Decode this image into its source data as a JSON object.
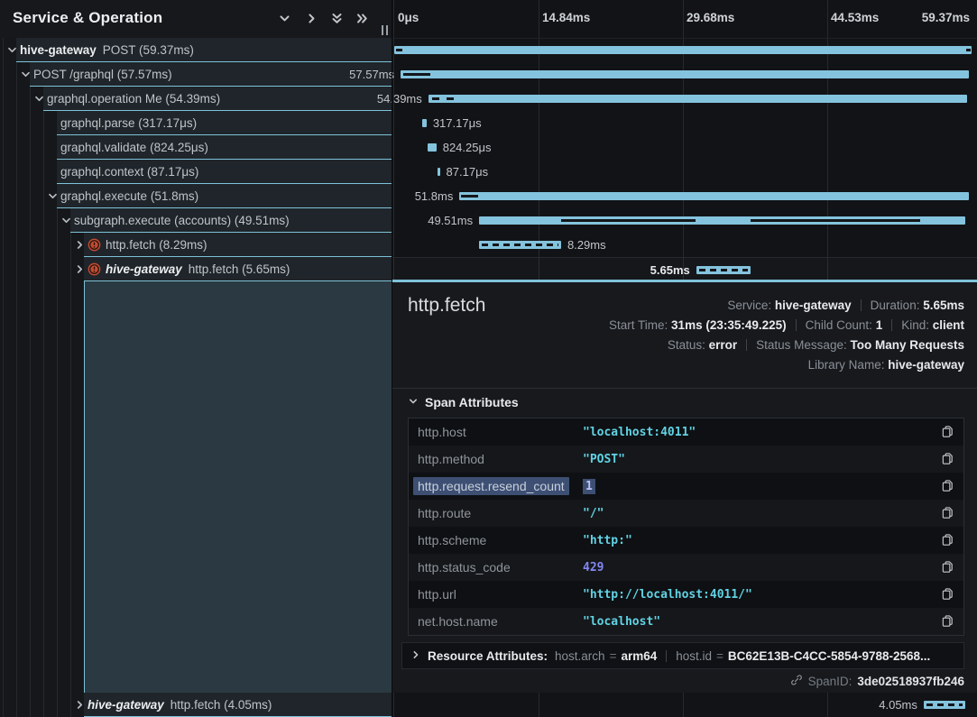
{
  "colors": {
    "accent_bar": "#84c3dd",
    "error_icon": "#c64b31",
    "selection": "#3d4f73",
    "status_code": "#8287f2",
    "value_string": "#61d3e4"
  },
  "left_panel": {
    "header": {
      "title": "Service & Operation",
      "icons": [
        "chevron-down",
        "chevron-right",
        "double-chevron-down",
        "double-chevron-right"
      ]
    },
    "rows": [
      {
        "level": 0,
        "chevron": "down",
        "service": "hive-gateway",
        "italic": false,
        "error": false,
        "name": "POST (59.37ms)"
      },
      {
        "level": 1,
        "chevron": "down",
        "name": "POST /graphql (57.57ms)"
      },
      {
        "level": 2,
        "chevron": "down",
        "name": "graphql.operation Me (54.39ms)"
      },
      {
        "level": 3,
        "chevron": "",
        "name": "graphql.parse (317.17μs)"
      },
      {
        "level": 3,
        "chevron": "",
        "name": "graphql.validate (824.25μs)"
      },
      {
        "level": 3,
        "chevron": "",
        "name": "graphql.context (87.17μs)"
      },
      {
        "level": 3,
        "chevron": "down",
        "name": "graphql.execute (51.8ms)"
      },
      {
        "level": 4,
        "chevron": "down",
        "name": "subgraph.execute (accounts) (49.51ms)"
      },
      {
        "level": 5,
        "chevron": "right",
        "error": true,
        "name": "http.fetch (8.29ms)"
      },
      {
        "level": 5,
        "chevron": "right",
        "error": true,
        "service": "hive-gateway",
        "italic": true,
        "name": "http.fetch (5.65ms)",
        "selected": true
      }
    ],
    "bottom_row": {
      "level": 5,
      "chevron": "right",
      "service": "hive-gateway",
      "italic": true,
      "name": "http.fetch (4.05ms)"
    }
  },
  "timeline": {
    "ticks": [
      "0μs",
      "14.84ms",
      "29.68ms",
      "44.53ms",
      "59.37ms"
    ],
    "bars": [
      {
        "start": 0,
        "width": 100,
        "segments": [
          [
            0.3,
            1.4
          ],
          [
            99.0,
            99.8
          ]
        ],
        "label": "",
        "side": ""
      },
      {
        "start": 1.1,
        "width": 98.4,
        "segments": [
          [
            0.5,
            5.3
          ]
        ],
        "label": "57.57ms",
        "side": "left"
      },
      {
        "start": 5.9,
        "width": 93.3,
        "segments": [
          [
            0.7,
            2.1
          ],
          [
            3.4,
            4.8
          ]
        ],
        "label": "54.39ms",
        "side": "left"
      },
      {
        "start": 4.9,
        "width": 0.7,
        "segments": [],
        "label": "317.17μs",
        "side": "right"
      },
      {
        "start": 5.8,
        "width": 1.5,
        "segments": [],
        "label": "824.25μs",
        "side": "right"
      },
      {
        "start": 7.5,
        "width": 0.4,
        "segments": [],
        "label": "87.17μs",
        "side": "right"
      },
      {
        "start": 11.3,
        "width": 88.2,
        "segments": [
          [
            0.3,
            3.6
          ]
        ],
        "label": "51.8ms",
        "side": "left"
      },
      {
        "start": 14.7,
        "width": 84.2,
        "segments": [
          [
            16.9,
            44.5
          ],
          [
            55.8,
            90.8
          ]
        ],
        "label": "49.51ms",
        "side": "left"
      },
      {
        "start": 14.7,
        "width": 14.2,
        "dashed": true,
        "segments": [],
        "label": "8.29ms",
        "side": "right"
      },
      {
        "start": 52.3,
        "width": 9.4,
        "dashed": true,
        "segments": [],
        "label": "5.65ms",
        "side": "left",
        "bold": true,
        "selected": true
      }
    ],
    "bottom_bar": {
      "start": 91.7,
      "width": 7.2,
      "dashed": true,
      "segments": [],
      "label": "4.05ms",
      "side": "left"
    }
  },
  "details": {
    "title": "http.fetch",
    "meta_lines": [
      [
        {
          "label": "Service:",
          "value": "hive-gateway"
        },
        {
          "label": "Duration:",
          "value": "5.65ms"
        }
      ],
      [
        {
          "label": "Start Time:",
          "value": "31ms (23:35:49.225)"
        },
        {
          "label": "Child Count:",
          "value": "1"
        },
        {
          "label": "Kind:",
          "value": "client"
        }
      ],
      [
        {
          "label": "Status:",
          "value": "error"
        },
        {
          "label": "Status Message:",
          "value": "Too Many Requests"
        }
      ],
      [
        {
          "label": "Library Name:",
          "value": "hive-gateway"
        }
      ]
    ],
    "span_attributes": {
      "header": "Span Attributes",
      "rows": [
        {
          "key": "http.host",
          "value": "\"localhost:4011\"",
          "type": "str"
        },
        {
          "key": "http.method",
          "value": "\"POST\"",
          "type": "str"
        },
        {
          "key": "http.request.resend_count",
          "value": "1",
          "type": "num",
          "selected": true
        },
        {
          "key": "http.route",
          "value": "\"/\"",
          "type": "str"
        },
        {
          "key": "http.scheme",
          "value": "\"http:\"",
          "type": "str"
        },
        {
          "key": "http.status_code",
          "value": "429",
          "type": "num"
        },
        {
          "key": "http.url",
          "value": "\"http://localhost:4011/\"",
          "type": "str"
        },
        {
          "key": "net.host.name",
          "value": "\"localhost\"",
          "type": "str"
        }
      ]
    },
    "resource": {
      "header": "Resource Attributes:",
      "items": [
        {
          "key": "host.arch",
          "value": "arm64"
        },
        {
          "key": "host.id",
          "value": "BC62E13B-C4CC-5854-9788-2568..."
        }
      ]
    },
    "footer": {
      "label": "SpanID:",
      "value": "3de02518937fb246"
    }
  }
}
